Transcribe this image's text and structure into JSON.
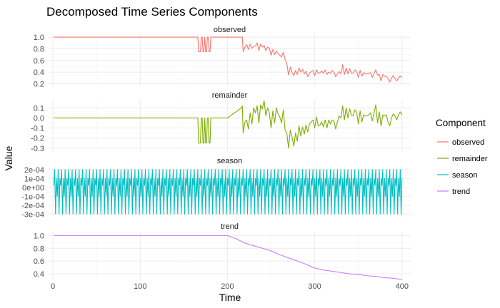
{
  "chart_data": {
    "type": "line",
    "title": "Decomposed Time Series Components",
    "xlabel": "Time",
    "ylabel": "Value",
    "legend": {
      "title": "Component",
      "placement": "right",
      "entries": [
        {
          "label": "observed",
          "color": "#F8766D"
        },
        {
          "label": "remainder",
          "color": "#7CAE00"
        },
        {
          "label": "season",
          "color": "#00BFC4"
        },
        {
          "label": "trend",
          "color": "#C77CFF"
        }
      ]
    },
    "xlim": [
      -5,
      410
    ],
    "x_ticks": [
      0,
      100,
      200,
      300,
      400
    ],
    "x_tick_labels": [
      "0",
      "100",
      "200",
      "300",
      "400"
    ],
    "grid": true,
    "facets": [
      {
        "name": "observed",
        "color": "#F8766D",
        "ylim": [
          0.17,
          1.05
        ],
        "y_ticks": [
          0.2,
          0.4,
          0.6,
          0.8,
          1.0
        ],
        "y_tick_labels": [
          "0.2",
          "0.4",
          "0.6",
          "0.8",
          "1.0"
        ],
        "x": [
          1,
          165,
          166,
          167,
          168,
          169,
          170,
          171,
          172,
          173,
          174,
          175,
          176,
          177,
          178,
          179,
          180,
          181,
          182,
          183,
          216,
          217,
          218,
          220,
          222,
          224,
          226,
          228,
          230,
          232,
          234,
          236,
          238,
          240,
          242,
          244,
          246,
          248,
          250,
          252,
          254,
          256,
          258,
          260,
          262,
          264,
          266,
          268,
          270,
          272,
          274,
          276,
          278,
          280,
          282,
          284,
          286,
          288,
          290,
          292,
          294,
          296,
          298,
          300,
          302,
          304,
          306,
          308,
          310,
          312,
          314,
          316,
          318,
          320,
          322,
          324,
          326,
          328,
          330,
          332,
          334,
          336,
          338,
          340,
          342,
          344,
          346,
          348,
          350,
          352,
          354,
          356,
          358,
          360,
          362,
          364,
          366,
          368,
          370,
          372,
          374,
          376,
          378,
          380,
          382,
          384,
          386,
          388,
          390,
          392,
          394,
          396,
          398,
          400
        ],
        "values": [
          1.0,
          1.0,
          1.0,
          0.75,
          0.75,
          0.75,
          1.0,
          1.0,
          0.75,
          0.75,
          1.0,
          0.75,
          0.75,
          1.0,
          1.0,
          0.75,
          0.75,
          1.0,
          1.0,
          1.0,
          1.0,
          1.0,
          0.75,
          0.83,
          0.87,
          0.79,
          0.88,
          0.81,
          0.84,
          0.85,
          0.9,
          0.77,
          0.88,
          0.83,
          0.86,
          0.77,
          0.83,
          0.81,
          0.69,
          0.79,
          0.7,
          0.76,
          0.72,
          0.69,
          0.66,
          0.74,
          0.62,
          0.55,
          0.35,
          0.49,
          0.39,
          0.34,
          0.43,
          0.36,
          0.47,
          0.4,
          0.45,
          0.37,
          0.42,
          0.32,
          0.38,
          0.41,
          0.43,
          0.34,
          0.44,
          0.38,
          0.39,
          0.42,
          0.38,
          0.44,
          0.36,
          0.4,
          0.38,
          0.43,
          0.4,
          0.32,
          0.37,
          0.41,
          0.37,
          0.53,
          0.36,
          0.47,
          0.37,
          0.46,
          0.38,
          0.38,
          0.44,
          0.41,
          0.31,
          0.43,
          0.33,
          0.39,
          0.37,
          0.37,
          0.38,
          0.39,
          0.31,
          0.38,
          0.44,
          0.35,
          0.36,
          0.25,
          0.36,
          0.33,
          0.33,
          0.29,
          0.23,
          0.3,
          0.34,
          0.29,
          0.25,
          0.3,
          0.33,
          0.31
        ]
      },
      {
        "name": "remainder",
        "color": "#7CAE00",
        "ylim": [
          -0.33,
          0.18
        ],
        "y_ticks": [
          -0.3,
          -0.2,
          -0.1,
          0.0,
          0.1
        ],
        "y_tick_labels": [
          "-0.3",
          "-0.2",
          "-0.1",
          "0.0",
          "0.1"
        ],
        "x": [
          1,
          165,
          166,
          167,
          168,
          169,
          170,
          171,
          172,
          173,
          174,
          175,
          176,
          177,
          178,
          179,
          180,
          181,
          182,
          183,
          200,
          216,
          217,
          218,
          220,
          222,
          224,
          226,
          228,
          230,
          232,
          234,
          236,
          238,
          240,
          242,
          244,
          246,
          248,
          250,
          252,
          254,
          256,
          258,
          260,
          262,
          264,
          266,
          268,
          270,
          272,
          274,
          276,
          278,
          280,
          282,
          284,
          286,
          288,
          290,
          292,
          294,
          296,
          298,
          300,
          302,
          304,
          306,
          308,
          310,
          312,
          314,
          316,
          318,
          320,
          322,
          324,
          326,
          328,
          330,
          332,
          334,
          336,
          338,
          340,
          342,
          344,
          346,
          348,
          350,
          352,
          354,
          356,
          358,
          360,
          362,
          364,
          366,
          368,
          370,
          372,
          374,
          376,
          378,
          380,
          382,
          384,
          386,
          388,
          390,
          392,
          394,
          396,
          398,
          400
        ],
        "values": [
          0.0,
          0.0,
          0.0,
          -0.25,
          -0.25,
          -0.25,
          0.0,
          0.0,
          -0.25,
          -0.25,
          0.0,
          -0.25,
          -0.25,
          0.0,
          0.0,
          -0.25,
          -0.25,
          0.0,
          0.0,
          0.0,
          0.0,
          0.1,
          0.12,
          -0.15,
          -0.04,
          -0.02,
          -0.11,
          0.05,
          -0.06,
          0.1,
          0.05,
          0.12,
          -0.05,
          0.13,
          0.09,
          0.17,
          0.02,
          0.1,
          0.05,
          -0.1,
          0.07,
          -0.05,
          0.1,
          0.04,
          0.01,
          -0.05,
          0.08,
          -0.12,
          -0.15,
          -0.3,
          -0.12,
          -0.19,
          -0.28,
          -0.15,
          -0.23,
          -0.08,
          -0.18,
          -0.09,
          -0.16,
          -0.07,
          -0.14,
          -0.06,
          -0.04,
          -0.02,
          -0.1,
          0.01,
          -0.08,
          -0.07,
          -0.04,
          -0.09,
          -0.02,
          -0.1,
          -0.02,
          -0.06,
          -0.02,
          -0.03,
          -0.11,
          -0.04,
          0.02,
          0.0,
          0.12,
          -0.02,
          0.1,
          0.0,
          0.09,
          0.03,
          0.02,
          0.08,
          0.06,
          -0.06,
          0.07,
          -0.04,
          0.03,
          0.02,
          0.02,
          0.03,
          0.05,
          -0.03,
          0.05,
          0.13,
          -0.05,
          0.06,
          -0.08,
          0.03,
          0.02,
          0.03,
          -0.04,
          -0.08,
          0.0,
          0.04,
          0.02,
          -0.02,
          0.03,
          0.06,
          0.03
        ]
      },
      {
        "name": "season",
        "color": "#00BFC4",
        "ylim": [
          -0.00033,
          0.00023
        ],
        "y_ticks": [
          -0.0003,
          -0.0002,
          -0.0001,
          0,
          0.0001,
          0.0002
        ],
        "y_tick_labels": [
          "-3e-04",
          "-2e-04",
          "-1e-04",
          "0e+00",
          "1e-04",
          "2e-04"
        ],
        "period": 8,
        "pattern": [
          2e-05,
          0.0002,
          -0.0003,
          0.0001,
          -0.0001,
          0.0002,
          -0.0003,
          0.0001
        ],
        "x_start": 1,
        "x_end": 400
      },
      {
        "name": "trend",
        "color": "#C77CFF",
        "ylim": [
          0.3,
          1.06
        ],
        "y_ticks": [
          0.4,
          0.6,
          0.8,
          1.0
        ],
        "y_tick_labels": [
          "0.4",
          "0.6",
          "0.8",
          "1.0"
        ],
        "x": [
          1,
          50,
          100,
          150,
          200,
          210,
          220,
          230,
          240,
          250,
          260,
          270,
          280,
          290,
          300,
          310,
          320,
          330,
          340,
          350,
          360,
          370,
          380,
          390,
          400
        ],
        "values": [
          1.0,
          1.0,
          1.0,
          1.0,
          1.0,
          0.95,
          0.88,
          0.84,
          0.8,
          0.76,
          0.7,
          0.65,
          0.6,
          0.55,
          0.49,
          0.46,
          0.44,
          0.42,
          0.4,
          0.39,
          0.37,
          0.36,
          0.34,
          0.33,
          0.31
        ]
      }
    ]
  }
}
